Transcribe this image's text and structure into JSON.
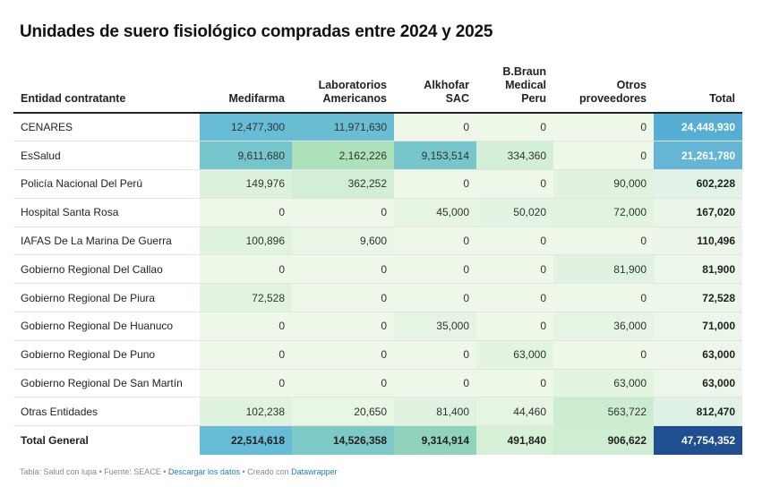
{
  "title": "Unidades de suero fisiológico compradas entre 2024 y 2025",
  "columns": [
    {
      "label_line1": "Entidad contratante",
      "label_line2": "",
      "label_line3": ""
    },
    {
      "label_line1": "Medifarma",
      "label_line2": "",
      "label_line3": ""
    },
    {
      "label_line1": "Laboratorios",
      "label_line2": "Americanos",
      "label_line3": ""
    },
    {
      "label_line1": "Alkhofar",
      "label_line2": "SAC",
      "label_line3": ""
    },
    {
      "label_line1": "B.Braun",
      "label_line2": "Medical",
      "label_line3": "Peru"
    },
    {
      "label_line1": "Otros",
      "label_line2": "proveedores",
      "label_line3": ""
    },
    {
      "label_line1": "Total",
      "label_line2": "",
      "label_line3": ""
    }
  ],
  "rows": [
    {
      "entity": "CENARES",
      "cells": [
        "12,477,300",
        "11,971,630",
        "0",
        "0",
        "0",
        "24,448,930"
      ]
    },
    {
      "entity": "EsSalud",
      "cells": [
        "9,611,680",
        "2,162,226",
        "9,153,514",
        "334,360",
        "0",
        "21,261,780"
      ]
    },
    {
      "entity": "Policía Nacional Del Perú",
      "cells": [
        "149,976",
        "362,252",
        "0",
        "0",
        "90,000",
        "602,228"
      ]
    },
    {
      "entity": "Hospital Santa Rosa",
      "cells": [
        "0",
        "0",
        "45,000",
        "50,020",
        "72,000",
        "167,020"
      ]
    },
    {
      "entity": "IAFAS De La Marina De Guerra",
      "cells": [
        "100,896",
        "9,600",
        "0",
        "0",
        "0",
        "110,496"
      ]
    },
    {
      "entity": "Gobierno Regional Del Callao",
      "cells": [
        "0",
        "0",
        "0",
        "0",
        "81,900",
        "81,900"
      ]
    },
    {
      "entity": "Gobierno Regional De Piura",
      "cells": [
        "72,528",
        "0",
        "0",
        "0",
        "0",
        "72,528"
      ]
    },
    {
      "entity": "Gobierno Regional De Huanuco",
      "cells": [
        "0",
        "0",
        "35,000",
        "0",
        "36,000",
        "71,000"
      ]
    },
    {
      "entity": "Gobierno Regional De Puno",
      "cells": [
        "0",
        "0",
        "0",
        "63,000",
        "0",
        "63,000"
      ]
    },
    {
      "entity": "Gobierno Regional De San Martín",
      "cells": [
        "0",
        "0",
        "0",
        "0",
        "63,000",
        "63,000"
      ]
    },
    {
      "entity": "Otras Entidades",
      "cells": [
        "102,238",
        "20,650",
        "81,400",
        "44,460",
        "563,722",
        "812,470"
      ]
    }
  ],
  "total_row": {
    "entity": "Total General",
    "cells": [
      "22,514,618",
      "14,526,358",
      "9,314,914",
      "491,840",
      "906,622",
      "47,754,352"
    ]
  },
  "footer": {
    "prefix": "Tabla: Salud con lupa • Fuente: SEACE • ",
    "download_link": "Descargar los datos",
    "middle": " • Creado con ",
    "tool_link": "Datawrapper"
  },
  "colors": {
    "scale_low": "#eef8e9",
    "scale_mid": "#9fdcb1",
    "scale_high": "#67bdd6",
    "total_low": "#eef8e9",
    "total_high": "#56aed4",
    "grand_total": "#1f4f8e"
  }
}
